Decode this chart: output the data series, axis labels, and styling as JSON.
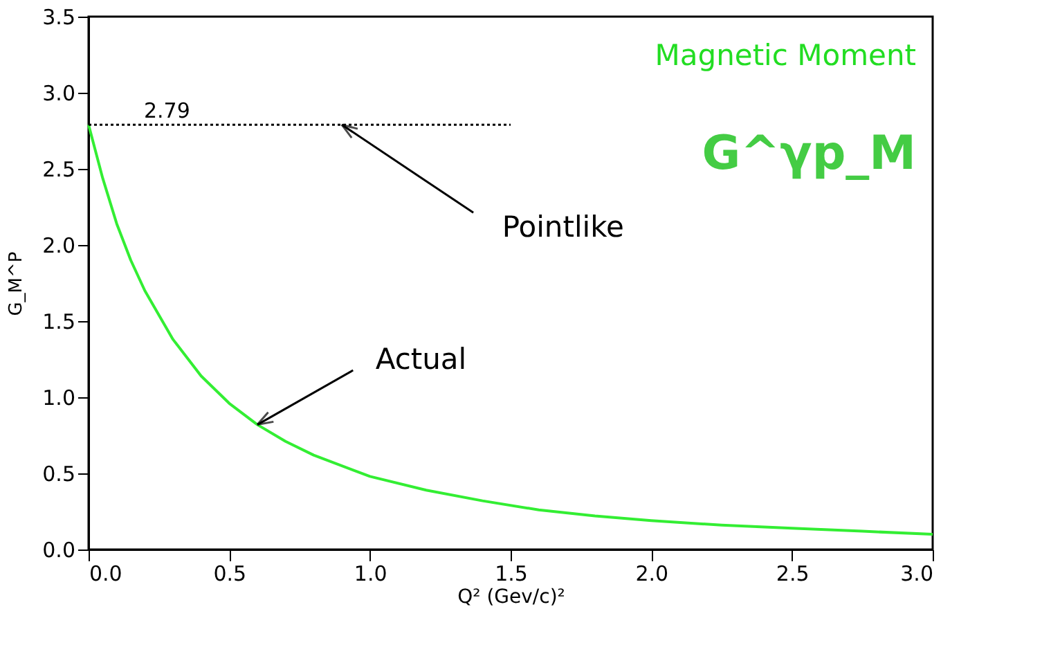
{
  "chart_data": {
    "type": "line",
    "xlabel": "Q²   (Gev/c)²",
    "ylabel": "G_M^P",
    "x": [
      0,
      0.05,
      0.1,
      0.15,
      0.2,
      0.3,
      0.4,
      0.5,
      0.6,
      0.7,
      0.8,
      1.0,
      1.2,
      1.4,
      1.6,
      1.8,
      2.0,
      2.25,
      2.5,
      2.75,
      3.0
    ],
    "series": [
      {
        "color": "#33ee33",
        "values": [
          2.79,
          2.44,
          2.14,
          1.9,
          1.7,
          1.38,
          1.14,
          0.96,
          0.82,
          0.71,
          0.62,
          0.48,
          0.39,
          0.32,
          0.26,
          0.22,
          0.19,
          0.16,
          0.14,
          0.12,
          0.1
        ]
      },
      {
        "name": "2.79",
        "type": "line",
        "color": "#000000",
        "line_style": "dotted",
        "x": [
          0,
          1.5
        ],
        "values": [
          2.79,
          2.79
        ]
      }
    ],
    "xlim": [
      0,
      3
    ],
    "xticks": [
      {
        "value": 0,
        "label": "0.0"
      },
      0.5,
      {
        "value": 1,
        "label": "1.0"
      },
      1.5,
      {
        "value": 2,
        "label": "2.0"
      },
      2.5,
      {
        "value": 3,
        "label": "3.0"
      }
    ],
    "ylim": [
      0,
      3.5
    ],
    "yticks": [
      {
        "value": 0,
        "label": "0.0"
      },
      0.5,
      {
        "value": 1,
        "label": "1.0"
      },
      1.5,
      {
        "value": 2,
        "label": "2.0"
      },
      2.5,
      {
        "value": 3,
        "label": "3.0"
      },
      3.5
    ],
    "grid": false,
    "line_style": "solid",
    "marker": "none",
    "annotations": [
      "Magnetic Moment",
      "G^γp_M",
      {
        "text": "Pointlike",
        "x": 0.9,
        "y": 2.79
      },
      {
        "text": "Actual",
        "x": 0.6,
        "y": 0.82
      }
    ]
  }
}
